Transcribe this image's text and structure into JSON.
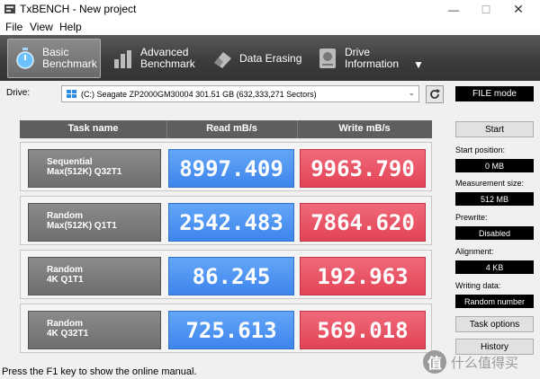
{
  "window": {
    "title": "TxBENCH - New project"
  },
  "menu": [
    "File",
    "View",
    "Help"
  ],
  "toolbar": {
    "tabs": [
      {
        "line1": "Basic",
        "line2": "Benchmark",
        "icon": "stopwatch-icon",
        "active": true
      },
      {
        "line1": "Advanced",
        "line2": "Benchmark",
        "icon": "bar-chart-icon",
        "active": false
      },
      {
        "line1": "Data Erasing",
        "line2": "",
        "icon": "eraser-icon",
        "active": false
      },
      {
        "line1": "Drive",
        "line2": "Information",
        "icon": "drive-icon",
        "active": false
      }
    ]
  },
  "drive": {
    "label": "Drive:",
    "selected": "(C:) Seagate ZP2000GM30004  301.51 GB (632,333,271 Sectors)"
  },
  "table": {
    "headers": {
      "task": "Task name",
      "read": "Read mB/s",
      "write": "Write mB/s"
    },
    "rows": [
      {
        "task_line1": "Sequential",
        "task_line2": "Max(512K) Q32T1",
        "read": "8997.409",
        "write": "9963.790"
      },
      {
        "task_line1": "Random",
        "task_line2": "Max(512K) Q1T1",
        "read": "2542.483",
        "write": "7864.620"
      },
      {
        "task_line1": "Random",
        "task_line2": "4K Q1T1",
        "read": "86.245",
        "write": "192.963"
      },
      {
        "task_line1": "Random",
        "task_line2": "4K Q32T1",
        "read": "725.613",
        "write": "569.018"
      }
    ]
  },
  "panel": {
    "mode": "FILE mode",
    "start_button": "Start",
    "start_position_label": "Start position:",
    "start_position_value": "0 MB",
    "measurement_size_label": "Measurement size:",
    "measurement_size_value": "512 MB",
    "prewrite_label": "Prewrite:",
    "prewrite_value": "Disabled",
    "alignment_label": "Alignment:",
    "alignment_value": "4 KB",
    "writing_data_label": "Writing data:",
    "writing_data_value": "Random number",
    "task_options_button": "Task options",
    "history_button": "History"
  },
  "status": {
    "text": "Press the F1 key to show the online manual."
  },
  "watermark": {
    "logo": "值",
    "text": "什么值得买"
  },
  "colors": {
    "read": "#3e85ec",
    "write": "#e24356",
    "toolbar": "#3c3c3c"
  }
}
